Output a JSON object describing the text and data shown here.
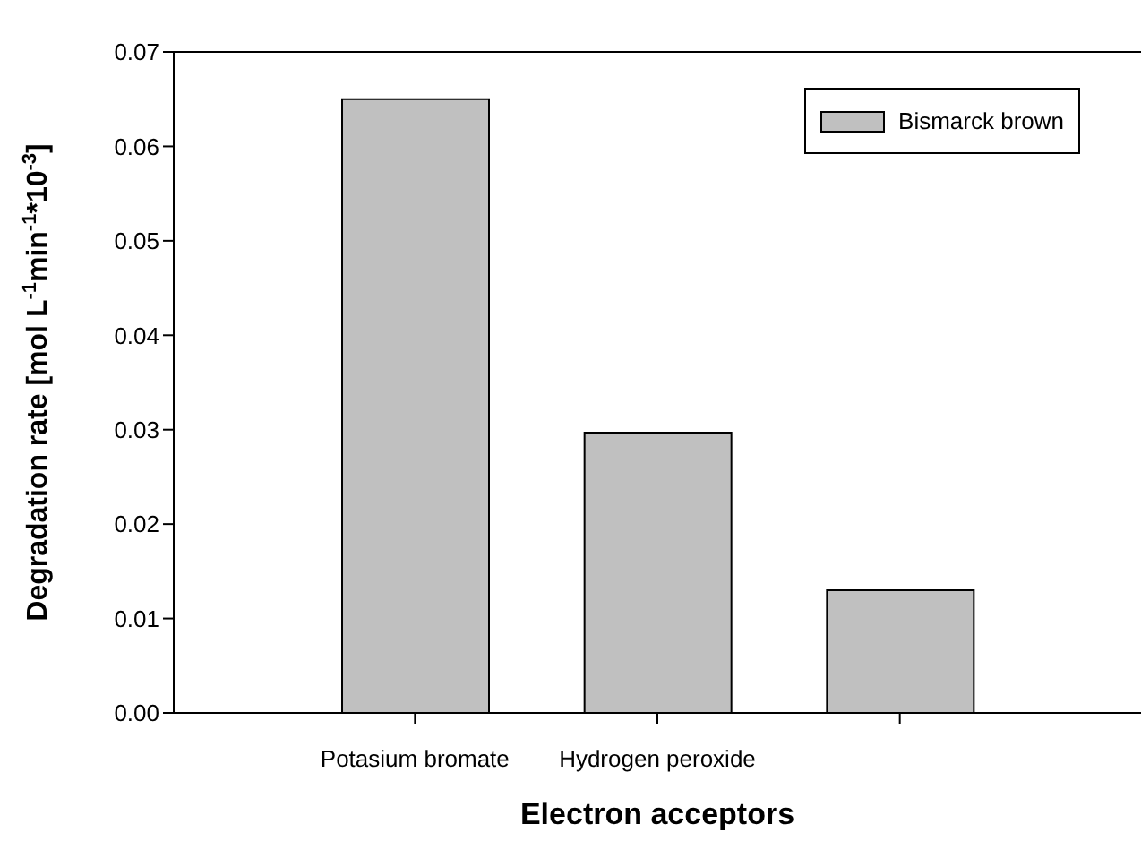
{
  "chart_data": {
    "type": "bar",
    "xlabel": "Electron acceptors",
    "ylabel": "Degradation rate [mol L$^{-1}$min$^{-1}$*10$^{-3}$]",
    "categories": [
      "Potasium bromate",
      "Hydrogen peroxide",
      null
    ],
    "series": [
      {
        "name": "Bismarck brown",
        "color": "#c0c0c0",
        "values": [
          0.065,
          0.0297,
          0.013
        ]
      }
    ],
    "ylim": [
      0,
      0.07
    ],
    "yticks": [
      {
        "value": 0,
        "label": "0.00"
      },
      0.01,
      0.02,
      0.03,
      0.04,
      0.05,
      0.06,
      0.07
    ],
    "grid": false,
    "legend": "top right"
  }
}
